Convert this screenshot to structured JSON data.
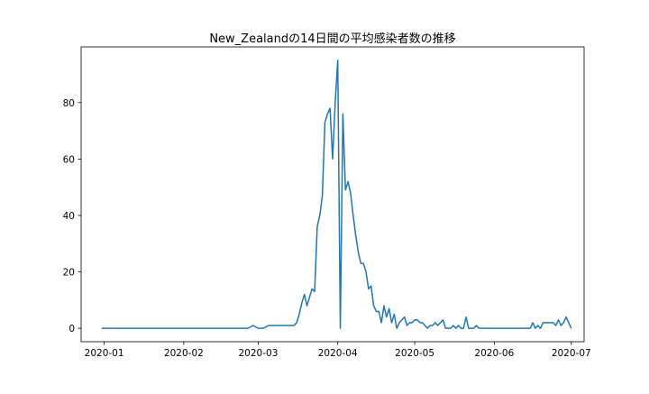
{
  "chart_data": {
    "type": "line",
    "title": "New_Zealandの14日間の平均感染者数の推移",
    "xlabel": "",
    "ylabel": "",
    "x_ticks": [
      "2020-01",
      "2020-02",
      "2020-03",
      "2020-04",
      "2020-05",
      "2020-06",
      "2020-07"
    ],
    "y_ticks": [
      "0",
      "20",
      "40",
      "60",
      "80"
    ],
    "xlim": [
      "2019-12-23",
      "2020-07-06"
    ],
    "ylim": [
      -4.75,
      99.75
    ],
    "grid": false,
    "legend": "none",
    "series": [
      {
        "color": "#1f77b4",
        "points": [
          [
            "2019-12-31",
            0
          ],
          [
            "2020-01-15",
            0
          ],
          [
            "2020-02-01",
            0
          ],
          [
            "2020-02-15",
            0
          ],
          [
            "2020-02-26",
            0
          ],
          [
            "2020-02-28",
            1
          ],
          [
            "2020-03-01",
            0
          ],
          [
            "2020-03-03",
            0
          ],
          [
            "2020-03-05",
            1
          ],
          [
            "2020-03-10",
            1
          ],
          [
            "2020-03-15",
            1
          ],
          [
            "2020-03-16",
            2
          ],
          [
            "2020-03-17",
            5
          ],
          [
            "2020-03-18",
            9
          ],
          [
            "2020-03-19",
            12
          ],
          [
            "2020-03-20",
            8
          ],
          [
            "2020-03-21",
            11
          ],
          [
            "2020-03-22",
            14
          ],
          [
            "2020-03-23",
            13
          ],
          [
            "2020-03-24",
            36
          ],
          [
            "2020-03-25",
            40
          ],
          [
            "2020-03-26",
            47
          ],
          [
            "2020-03-27",
            73
          ],
          [
            "2020-03-28",
            76
          ],
          [
            "2020-03-29",
            78
          ],
          [
            "2020-03-30",
            60
          ],
          [
            "2020-03-31",
            80
          ],
          [
            "2020-04-01",
            95
          ],
          [
            "2020-04-02",
            0
          ],
          [
            "2020-04-03",
            76
          ],
          [
            "2020-04-04",
            49
          ],
          [
            "2020-04-05",
            52
          ],
          [
            "2020-04-06",
            48
          ],
          [
            "2020-04-07",
            40
          ],
          [
            "2020-04-08",
            33
          ],
          [
            "2020-04-09",
            27
          ],
          [
            "2020-04-10",
            23
          ],
          [
            "2020-04-11",
            23
          ],
          [
            "2020-04-12",
            20
          ],
          [
            "2020-04-13",
            14
          ],
          [
            "2020-04-14",
            15
          ],
          [
            "2020-04-15",
            8
          ],
          [
            "2020-04-16",
            6
          ],
          [
            "2020-04-17",
            6
          ],
          [
            "2020-04-18",
            2
          ],
          [
            "2020-04-19",
            8
          ],
          [
            "2020-04-20",
            4
          ],
          [
            "2020-04-21",
            7
          ],
          [
            "2020-04-22",
            2
          ],
          [
            "2020-04-23",
            5
          ],
          [
            "2020-04-24",
            0
          ],
          [
            "2020-04-25",
            2
          ],
          [
            "2020-04-26",
            3
          ],
          [
            "2020-04-27",
            4
          ],
          [
            "2020-04-28",
            1
          ],
          [
            "2020-04-29",
            2
          ],
          [
            "2020-04-30",
            2
          ],
          [
            "2020-05-01",
            3
          ],
          [
            "2020-05-02",
            3
          ],
          [
            "2020-05-03",
            2
          ],
          [
            "2020-05-04",
            2
          ],
          [
            "2020-05-05",
            1
          ],
          [
            "2020-05-06",
            0
          ],
          [
            "2020-05-07",
            1
          ],
          [
            "2020-05-08",
            1
          ],
          [
            "2020-05-09",
            2
          ],
          [
            "2020-05-10",
            1
          ],
          [
            "2020-05-11",
            2
          ],
          [
            "2020-05-12",
            3
          ],
          [
            "2020-05-13",
            0
          ],
          [
            "2020-05-14",
            0
          ],
          [
            "2020-05-15",
            0
          ],
          [
            "2020-05-16",
            1
          ],
          [
            "2020-05-17",
            0
          ],
          [
            "2020-05-18",
            1
          ],
          [
            "2020-05-19",
            0
          ],
          [
            "2020-05-20",
            0
          ],
          [
            "2020-05-21",
            4
          ],
          [
            "2020-05-22",
            0
          ],
          [
            "2020-05-23",
            0
          ],
          [
            "2020-05-24",
            0
          ],
          [
            "2020-05-25",
            1
          ],
          [
            "2020-05-26",
            0
          ],
          [
            "2020-06-01",
            0
          ],
          [
            "2020-06-10",
            0
          ],
          [
            "2020-06-15",
            0
          ],
          [
            "2020-06-16",
            2
          ],
          [
            "2020-06-17",
            0
          ],
          [
            "2020-06-18",
            1
          ],
          [
            "2020-06-19",
            0
          ],
          [
            "2020-06-20",
            2
          ],
          [
            "2020-06-21",
            2
          ],
          [
            "2020-06-22",
            2
          ],
          [
            "2020-06-23",
            2
          ],
          [
            "2020-06-24",
            2
          ],
          [
            "2020-06-25",
            1
          ],
          [
            "2020-06-26",
            3
          ],
          [
            "2020-06-27",
            1
          ],
          [
            "2020-06-28",
            2
          ],
          [
            "2020-06-29",
            4
          ],
          [
            "2020-06-30",
            2
          ],
          [
            "2020-07-01",
            0
          ]
        ]
      }
    ]
  }
}
